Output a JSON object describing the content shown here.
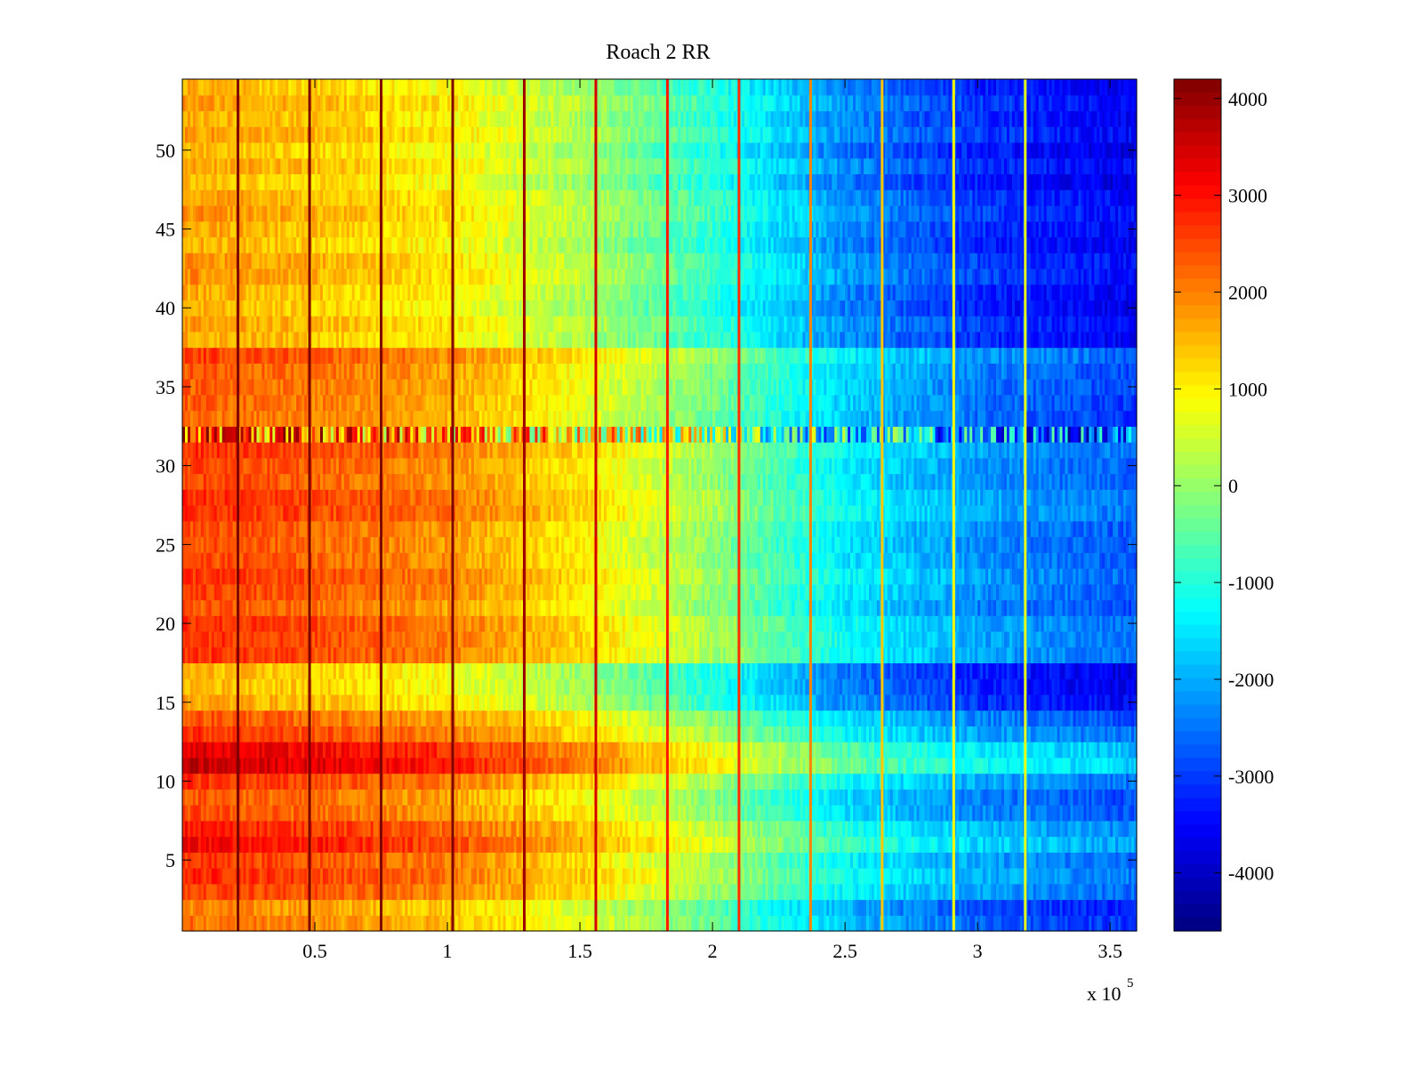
{
  "chart_data": {
    "type": "heatmap",
    "title": "Roach 2 RR",
    "xlabel": "",
    "ylabel": "",
    "x_multiplier_label": "x 10",
    "x_multiplier_exponent": "5",
    "xlim": [
      0,
      3.6
    ],
    "ylim": [
      0.5,
      54.5
    ],
    "x_ticks": [
      0.5,
      1,
      1.5,
      2,
      2.5,
      3,
      3.5
    ],
    "x_tick_labels": [
      "0.5",
      "1",
      "1.5",
      "2",
      "2.5",
      "3",
      "3.5"
    ],
    "y_ticks": [
      5,
      10,
      15,
      20,
      25,
      30,
      35,
      40,
      45,
      50
    ],
    "y_tick_labels": [
      "5",
      "10",
      "15",
      "20",
      "25",
      "30",
      "35",
      "40",
      "45",
      "50"
    ],
    "colorbar": {
      "colormap": "jet",
      "range": [
        -4600,
        4200
      ],
      "ticks": [
        4000,
        3000,
        2000,
        1000,
        0,
        -1000,
        -2000,
        -3000,
        -4000
      ],
      "tick_labels": [
        "4000",
        "3000",
        "2000",
        "1000",
        "0",
        "-1000",
        "-2000",
        "-3000",
        "-4000"
      ]
    },
    "rows": 54,
    "columns_approx": 360,
    "column_trend_control_points": {
      "x_1e5": [
        0.0,
        0.5,
        1.0,
        1.5,
        2.0,
        2.5,
        3.0,
        3.6
      ],
      "value": [
        2600,
        2300,
        1900,
        1100,
        0,
        -1400,
        -2200,
        -2700
      ]
    },
    "row_band_offsets": [
      {
        "rows": [
          1,
          2
        ],
        "offset": -500
      },
      {
        "rows": [
          6,
          7
        ],
        "offset": 500
      },
      {
        "rows": [
          8,
          9
        ],
        "offset": -300
      },
      {
        "rows": [
          11,
          12
        ],
        "offset": 900
      },
      {
        "rows": [
          15,
          16,
          17
        ],
        "offset": -900
      },
      {
        "rows": [
          38,
          39,
          40,
          41,
          42,
          43,
          44,
          45,
          46,
          47,
          48,
          49,
          50,
          51,
          52,
          53,
          54
        ],
        "offset": -900
      },
      {
        "rows": [
          33,
          34,
          35,
          36,
          37
        ],
        "offset": -200
      }
    ],
    "speckled_row": 32,
    "vertical_streaks_x_1e5": [
      0.21,
      0.48,
      0.75,
      1.02,
      1.29,
      1.56,
      1.83,
      2.1,
      2.37,
      2.64,
      2.91,
      3.18
    ]
  }
}
